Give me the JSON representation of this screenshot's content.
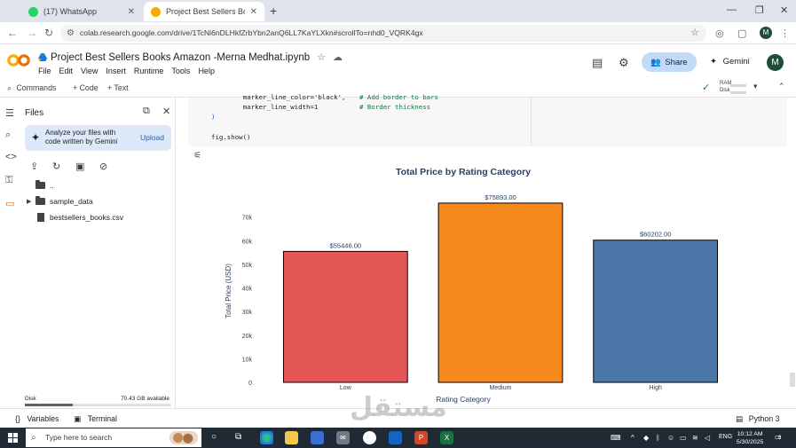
{
  "browser": {
    "tabs": [
      {
        "title": "(17) WhatsApp",
        "active": false,
        "favicon_color": "#25d366"
      },
      {
        "title": "Project Best Sellers Books Amaz",
        "active": true,
        "favicon_color": "#f9ab00"
      }
    ],
    "url": "colab.research.google.com/drive/1TcNi6nDLHkfZrbYbn2anQ6LL7KaYLXkn#scrollTo=nhd0_VQRK4gx",
    "profile_initial": "M"
  },
  "colab": {
    "notebook_title": "Project Best Sellers Books Amazon -Merna Medhat.ipynb",
    "menus": [
      "File",
      "Edit",
      "View",
      "Insert",
      "Runtime",
      "Tools",
      "Help"
    ],
    "share_label": "Share",
    "gemini_label": "Gemini",
    "profile_initial": "M"
  },
  "toolbar": {
    "commands_label": "Commands",
    "code_label": "+ Code",
    "text_label": "+ Text",
    "ram_label": "RAM",
    "disk_label": "Disk"
  },
  "files_panel": {
    "title": "Files",
    "gemini_prompt": [
      "Analyze your files with",
      "code written by Gemini"
    ],
    "upload_label": "Upload",
    "tree": [
      {
        "name": "..",
        "type": "folder",
        "expandable": false
      },
      {
        "name": "sample_data",
        "type": "folder",
        "expandable": true
      },
      {
        "name": "bestsellers_books.csv",
        "type": "file",
        "expandable": false
      }
    ],
    "disk_label": "Disk",
    "disk_available": "70.43 GB available",
    "disk_used_fraction": 0.33
  },
  "code": {
    "line1_code": "    marker_line_color='black',",
    "line1_comment": "# Add border to bars",
    "line2_code": "    marker_line_width=1",
    "line2_comment": "# Border thickness",
    "line3": ")",
    "line4": "fig.show()"
  },
  "chart_data": {
    "type": "bar",
    "title": "Total Price by Rating Category",
    "xlabel": "Rating Category",
    "ylabel": "Total Price (USD)",
    "categories": [
      "Low",
      "Medium",
      "High"
    ],
    "values": [
      55446.0,
      75893.0,
      60202.0
    ],
    "data_labels": [
      "$55446.00",
      "$75893.00",
      "$60202.00"
    ],
    "colors": [
      "#e55757",
      "#f5891c",
      "#4b78a8"
    ],
    "border_color": "#000000",
    "ylim": [
      0,
      80000
    ],
    "yticks": [
      0,
      10000,
      20000,
      30000,
      40000,
      50000,
      60000,
      70000
    ],
    "ytick_labels": [
      "0",
      "10k",
      "20k",
      "30k",
      "40k",
      "50k",
      "60k",
      "70k"
    ],
    "grid": false
  },
  "statusbar": {
    "variables_label": "Variables",
    "terminal_label": "Terminal",
    "runtime_label": "Python 3"
  },
  "taskbar": {
    "search_placeholder": "Type here to search",
    "language": "ENG",
    "time": "10:12 AM",
    "date": "5/30/2025",
    "notification_count": "6"
  }
}
